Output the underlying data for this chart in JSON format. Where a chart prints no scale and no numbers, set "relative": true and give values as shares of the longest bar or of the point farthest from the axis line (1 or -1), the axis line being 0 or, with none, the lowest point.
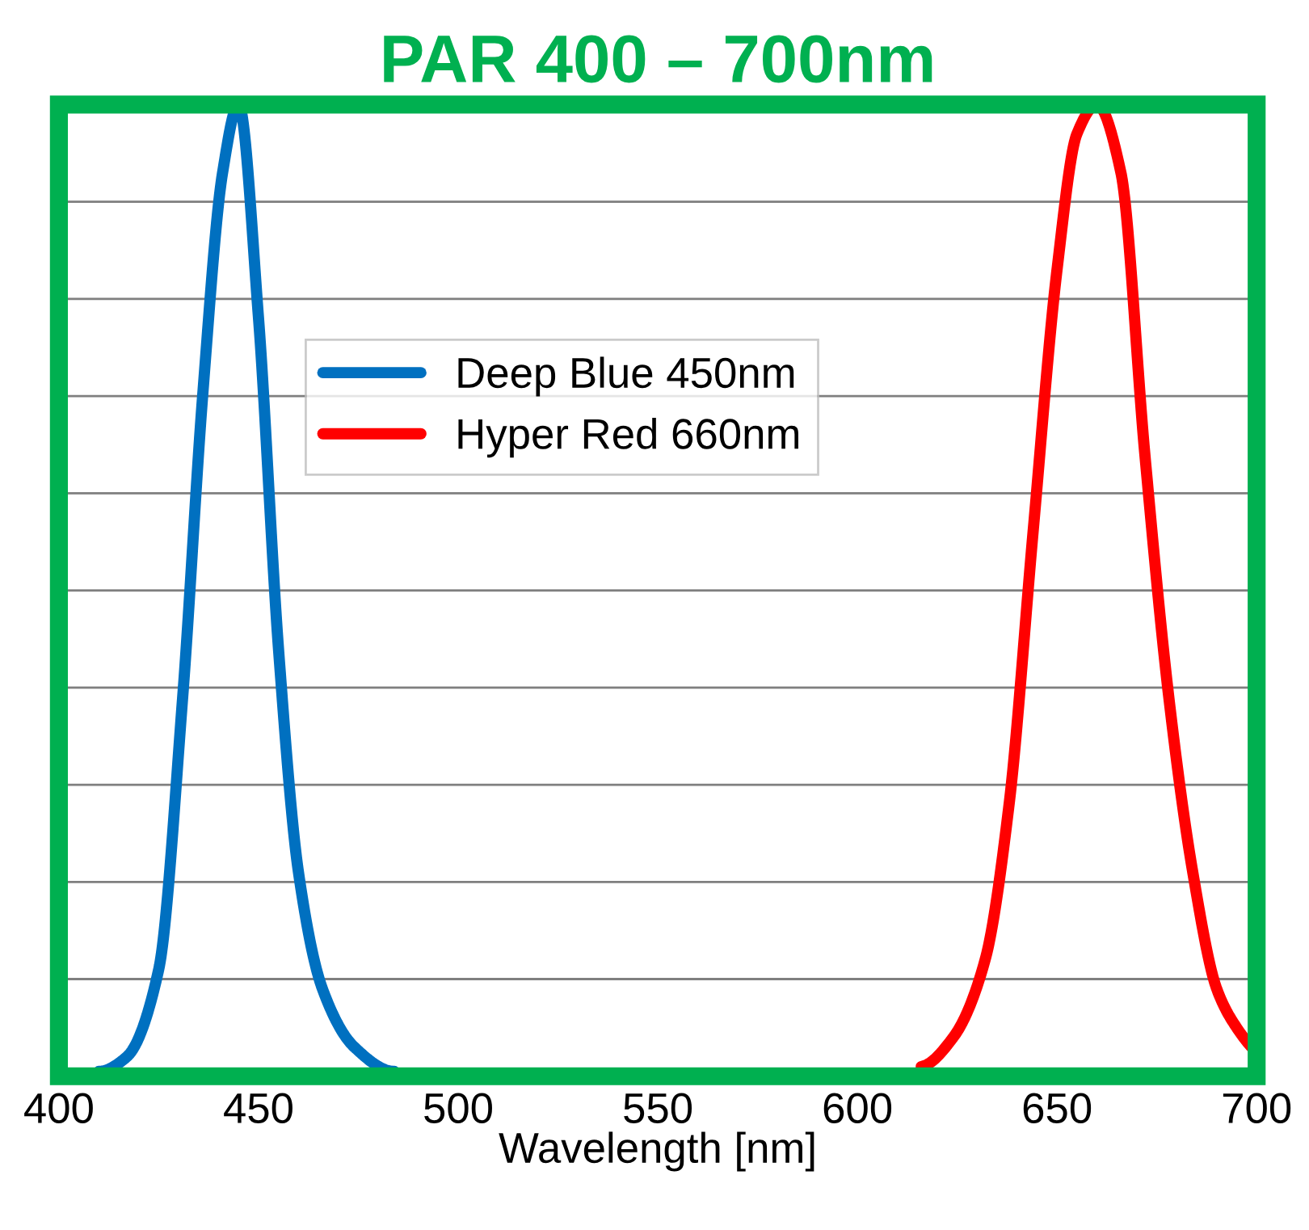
{
  "chart_data": {
    "type": "line",
    "title": "PAR 400 – 700nm",
    "xlabel": "Wavelength [nm]",
    "relative": true,
    "xlim": [
      400,
      700
    ],
    "xticks": [
      400,
      450,
      500,
      550,
      600,
      650,
      700
    ],
    "series": [
      {
        "name": "Deep Blue 450nm",
        "color": "#0070c0",
        "x": [
          410,
          417,
          425,
          431,
          436,
          441,
          445,
          450,
          455,
          460,
          466,
          474,
          484
        ],
        "values": [
          0.005,
          0.02,
          0.11,
          0.39,
          0.7,
          0.93,
          1.0,
          0.78,
          0.44,
          0.21,
          0.09,
          0.03,
          0.005
        ]
      },
      {
        "name": "Hyper Red 660nm",
        "color": "#ff0000",
        "x": [
          616,
          624,
          632,
          638,
          644,
          650,
          655,
          660,
          666,
          672,
          678,
          684,
          690,
          695,
          700
        ],
        "values": [
          0.01,
          0.04,
          0.12,
          0.28,
          0.56,
          0.83,
          0.97,
          1.0,
          0.93,
          0.64,
          0.39,
          0.21,
          0.09,
          0.05,
          0.025
        ]
      }
    ],
    "grid": "y",
    "legend": "top",
    "line_style": "solid",
    "marker": "none"
  }
}
